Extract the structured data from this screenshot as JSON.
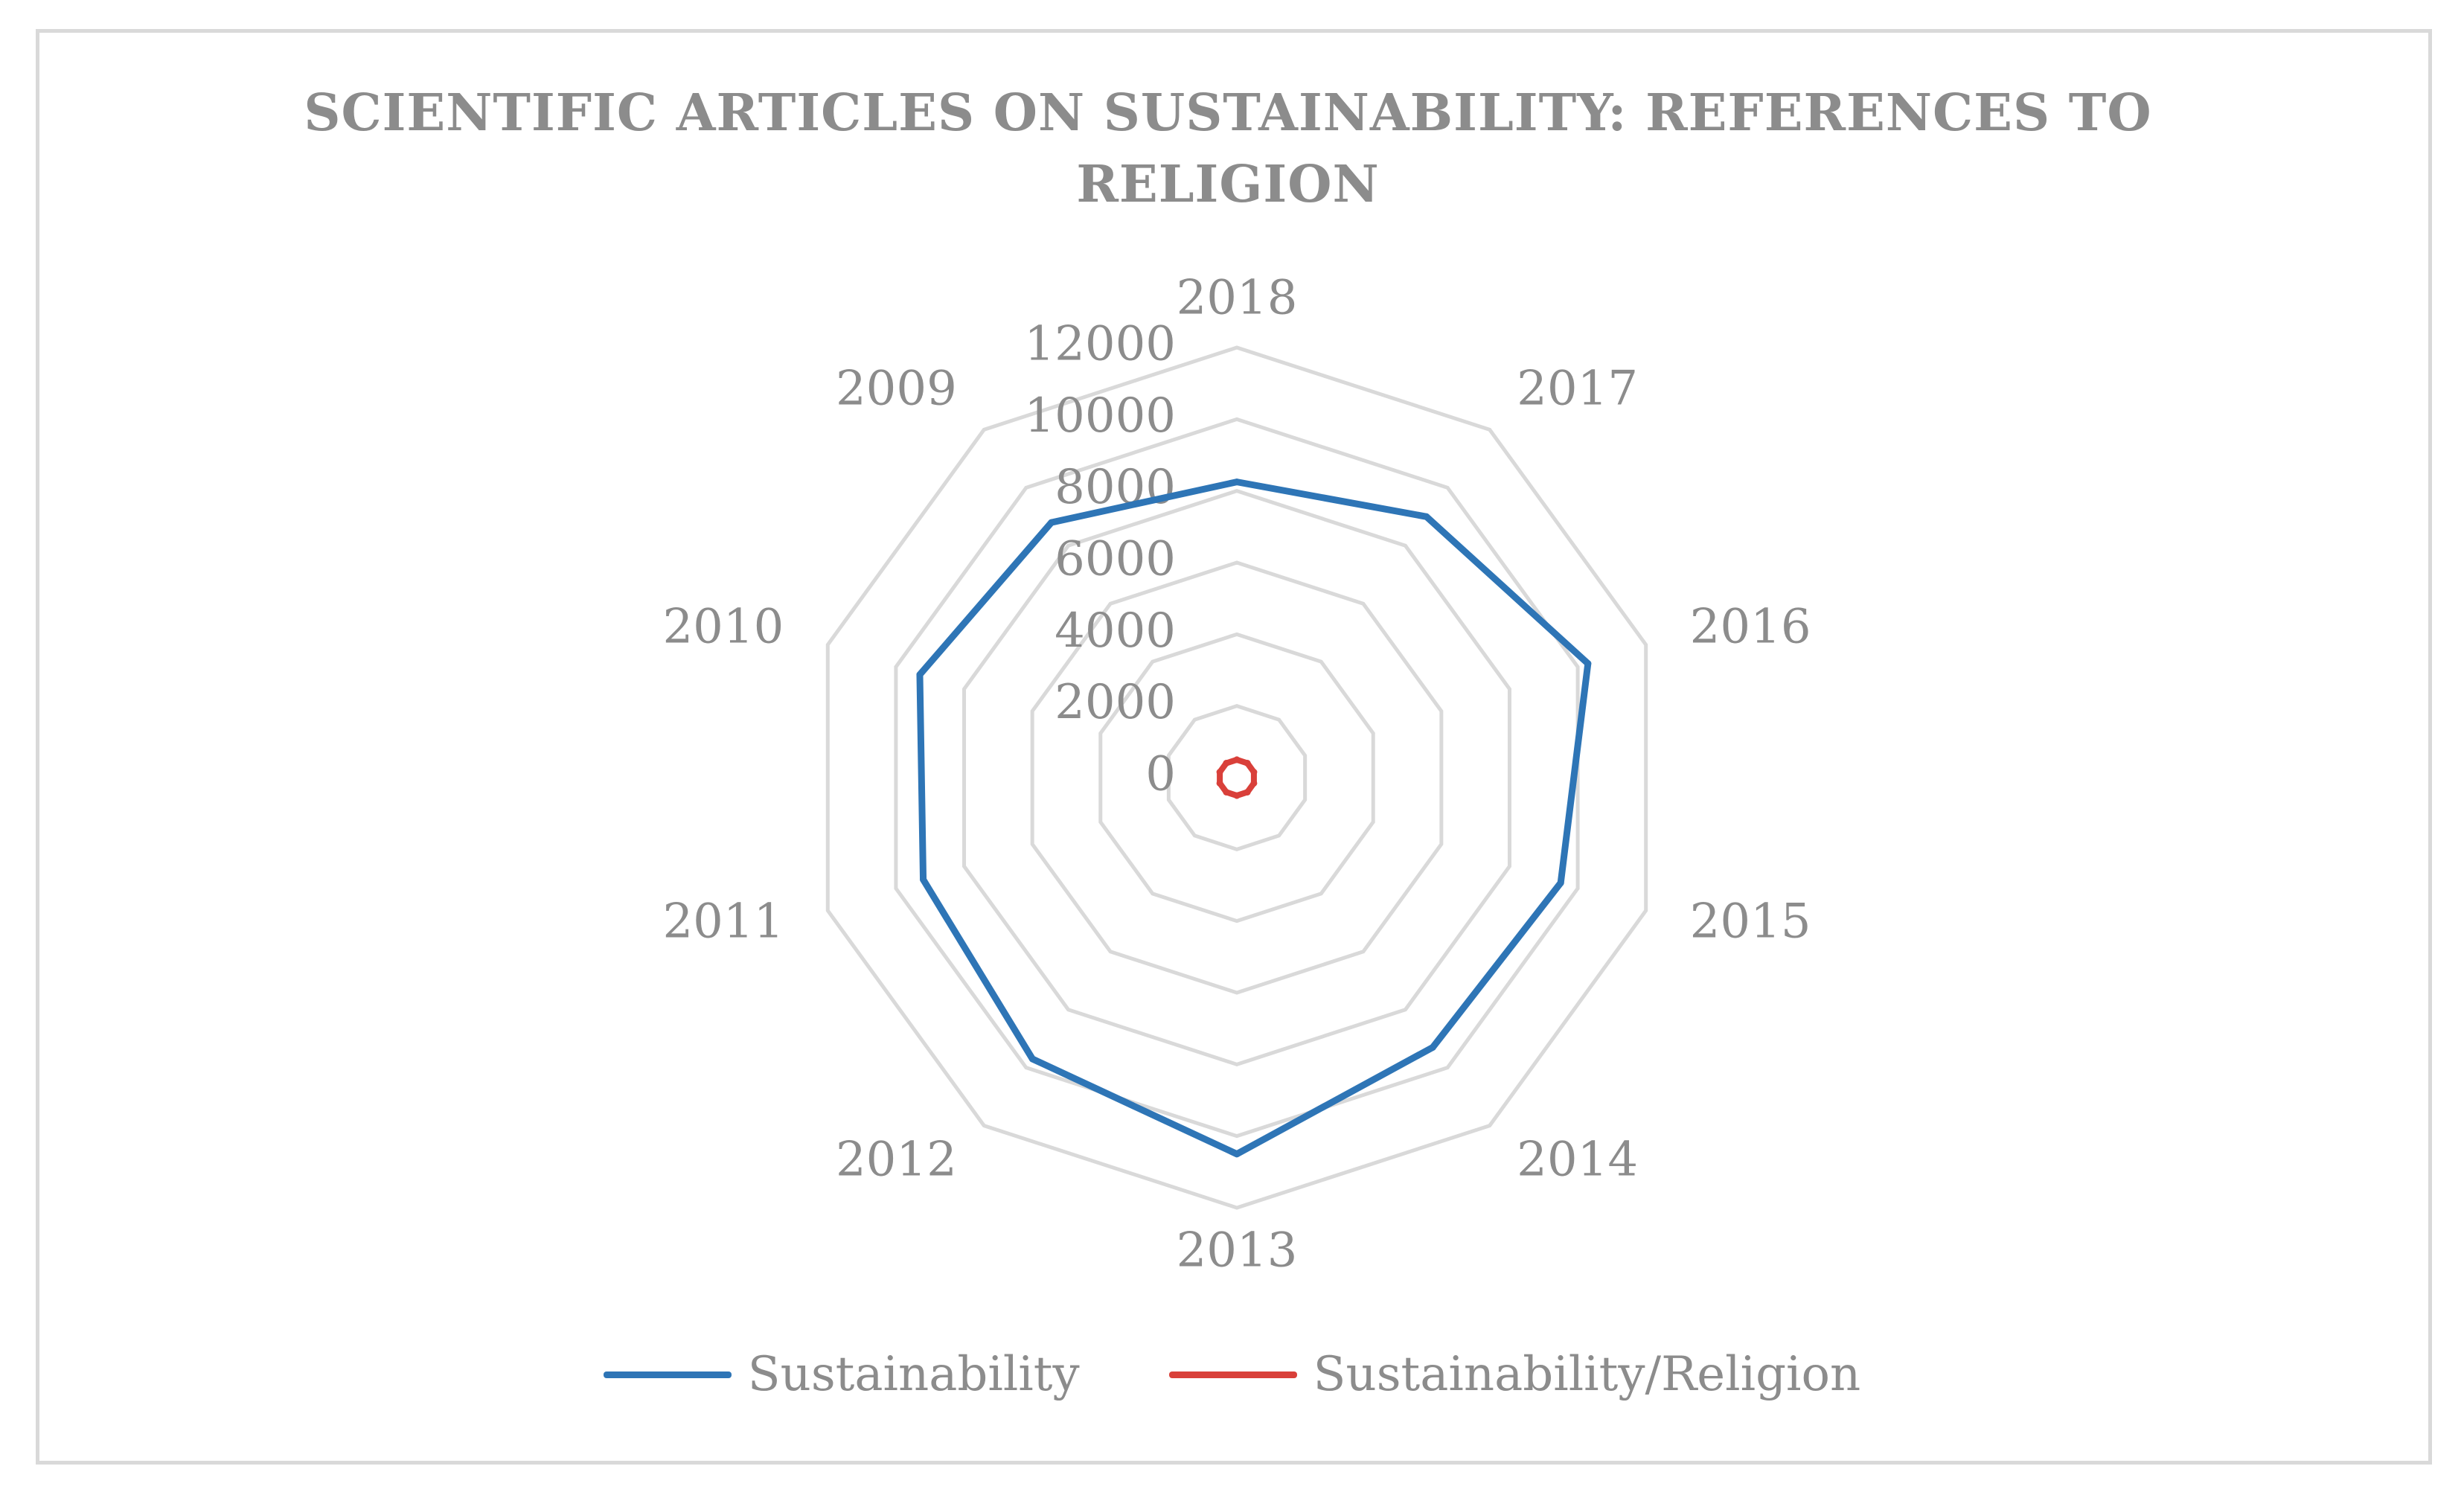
{
  "chart_data": {
    "type": "radar",
    "title": "SCIENTIFIC ARTICLES ON SUSTAINABILITY: REFERENCES TO RELIGION",
    "categories": [
      "2018",
      "2017",
      "2016",
      "2015",
      "2014",
      "2013",
      "2012",
      "2011",
      "2010",
      "2009"
    ],
    "rlim": [
      0,
      12000
    ],
    "ticks": [
      "0",
      "2000",
      "4000",
      "6000",
      "8000",
      "10000",
      "12000"
    ],
    "tick_values": [
      0,
      2000,
      4000,
      6000,
      8000,
      10000,
      12000
    ],
    "grid": true,
    "legend_position": "bottom",
    "series": [
      {
        "name": "Sustainability",
        "color": "#2e75b6",
        "values": [
          8250,
          9000,
          10300,
          9500,
          9300,
          10500,
          9700,
          9200,
          9300,
          8800
        ]
      },
      {
        "name": "Sustainability/Religion",
        "color": "#d9403a",
        "values": [
          500,
          500,
          500,
          500,
          500,
          500,
          500,
          500,
          500,
          500
        ]
      }
    ]
  }
}
